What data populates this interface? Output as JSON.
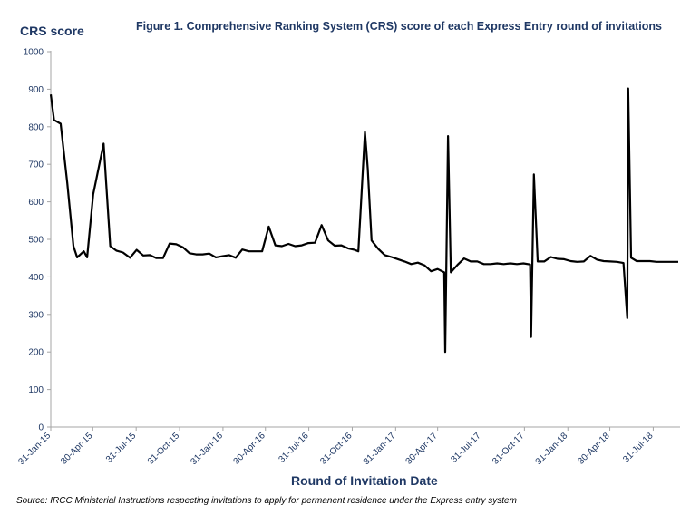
{
  "colors": {
    "text": "#1f3864",
    "line": "#000000",
    "axis": "#a6a6a6"
  },
  "chart_data": {
    "type": "line",
    "title": "Figure 1. Comprehensive Ranking System (CRS) score of each Express Entry round of invitations",
    "ylabel": "CRS score",
    "xlabel": "Round of Invitation Date",
    "source": "Source: IRCC Ministerial Instructions respecting invitations to apply for permanent residence under the Express entry system",
    "ylim": [
      0,
      1000
    ],
    "yticks": [
      0,
      100,
      200,
      300,
      400,
      500,
      600,
      700,
      800,
      900,
      1000
    ],
    "xlim": [
      0,
      1330
    ],
    "xticks": [
      {
        "label": "31-Jan-15",
        "x": 0
      },
      {
        "label": "30-Apr-15",
        "x": 89
      },
      {
        "label": "31-Jul-15",
        "x": 181
      },
      {
        "label": "31-Oct-15",
        "x": 273
      },
      {
        "label": "31-Jan-16",
        "x": 365
      },
      {
        "label": "30-Apr-16",
        "x": 455
      },
      {
        "label": "31-Jul-16",
        "x": 547
      },
      {
        "label": "31-Oct-16",
        "x": 639
      },
      {
        "label": "31-Jan-17",
        "x": 731
      },
      {
        "label": "30-Apr-17",
        "x": 820
      },
      {
        "label": "31-Jul-17",
        "x": 912
      },
      {
        "label": "31-Oct-17",
        "x": 1004
      },
      {
        "label": "31-Jan-18",
        "x": 1096
      },
      {
        "label": "30-Apr-18",
        "x": 1185
      },
      {
        "label": "31-Jul-18",
        "x": 1277
      }
    ],
    "series": [
      {
        "name": "CRS score",
        "x": [
          0,
          7,
          21,
          35,
          48,
          56,
          70,
          77,
          90,
          112,
          126,
          139,
          153,
          168,
          182,
          196,
          210,
          224,
          238,
          252,
          266,
          280,
          294,
          308,
          322,
          336,
          350,
          364,
          378,
          392,
          406,
          420,
          434,
          448,
          462,
          476,
          490,
          504,
          518,
          532,
          546,
          560,
          574,
          588,
          602,
          616,
          630,
          644,
          652,
          666,
          672,
          680,
          694,
          708,
          722,
          736,
          750,
          764,
          778,
          792,
          806,
          820,
          834,
          836,
          842,
          848,
          862,
          876,
          890,
          904,
          918,
          932,
          946,
          960,
          974,
          988,
          1002,
          1016,
          1018,
          1024,
          1032,
          1046,
          1060,
          1074,
          1088,
          1102,
          1116,
          1130,
          1144,
          1158,
          1172,
          1186,
          1200,
          1214,
          1222,
          1224,
          1230,
          1242,
          1256,
          1270,
          1284,
          1298,
          1312,
          1330
        ],
        "values": [
          886,
          818,
          808,
          650,
          482,
          452,
          468,
          452,
          620,
          755,
          482,
          470,
          465,
          451,
          472,
          457,
          458,
          450,
          450,
          489,
          487,
          479,
          463,
          460,
          460,
          462,
          452,
          455,
          458,
          451,
          473,
          468,
          468,
          468,
          534,
          484,
          482,
          488,
          482,
          484,
          490,
          491,
          538,
          497,
          483,
          484,
          476,
          472,
          468,
          786,
          688,
          497,
          475,
          458,
          453,
          447,
          441,
          434,
          438,
          431,
          415,
          421,
          412,
          200,
          775,
          412,
          432,
          449,
          441,
          441,
          434,
          434,
          436,
          434,
          436,
          434,
          436,
          433,
          240,
          673,
          441,
          441,
          453,
          448,
          447,
          442,
          440,
          441,
          456,
          446,
          442,
          441,
          440,
          437,
          290,
          902,
          451,
          442,
          442,
          442,
          440,
          440,
          440,
          440
        ]
      }
    ]
  }
}
